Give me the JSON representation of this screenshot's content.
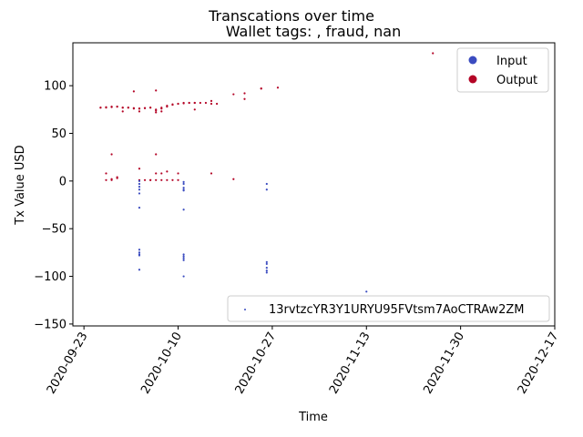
{
  "chart_data": {
    "type": "scatter",
    "title": "Transcations over time",
    "subtitle": "Wallet tags: , fraud, nan",
    "xlabel": "Time",
    "ylabel": "Tx Value USD",
    "xlim": [
      "2020-09-21",
      "2020-12-17"
    ],
    "ylim": [
      -152,
      145
    ],
    "x_ticks": [
      "2020-09-23",
      "2020-10-10",
      "2020-10-27",
      "2020-11-13",
      "2020-11-30",
      "2020-12-17"
    ],
    "y_ticks": [
      100,
      50,
      0,
      -50,
      -100,
      -150
    ],
    "grid": false,
    "legend_hue": {
      "placement": "top-right",
      "entries": [
        {
          "label": "Input",
          "color": "#3b4cc0"
        },
        {
          "label": "Output",
          "color": "#b40426"
        }
      ]
    },
    "legend_wallet": {
      "placement": "bottom-right",
      "label": "13rvtzcYR3Y1URYU95FVtsm7AoCTRAw2ZM",
      "color": "#3b4cc0"
    },
    "series": [
      {
        "name": "Output",
        "color": "#b40426",
        "points": [
          [
            "2020-09-26",
            77
          ],
          [
            "2020-09-26",
            77
          ],
          [
            "2020-09-27",
            77
          ],
          [
            "2020-09-27",
            77.5
          ],
          [
            "2020-09-28",
            77.5
          ],
          [
            "2020-09-28",
            78
          ],
          [
            "2020-09-29",
            78
          ],
          [
            "2020-09-29",
            78
          ],
          [
            "2020-09-30",
            77
          ],
          [
            "2020-09-30",
            77
          ],
          [
            "2020-10-01",
            77
          ],
          [
            "2020-10-01",
            77
          ],
          [
            "2020-10-02",
            76.5
          ],
          [
            "2020-10-02",
            76
          ],
          [
            "2020-10-03",
            76
          ],
          [
            "2020-10-03",
            76
          ],
          [
            "2020-10-04",
            76.5
          ],
          [
            "2020-10-04",
            76.5
          ],
          [
            "2020-10-05",
            77
          ],
          [
            "2020-10-05",
            77
          ],
          [
            "2020-10-06",
            75
          ],
          [
            "2020-10-06",
            74
          ],
          [
            "2020-10-07",
            76
          ],
          [
            "2020-10-07",
            77
          ],
          [
            "2020-10-08",
            78
          ],
          [
            "2020-10-08",
            79
          ],
          [
            "2020-10-09",
            80
          ],
          [
            "2020-10-09",
            80.5
          ],
          [
            "2020-10-10",
            81
          ],
          [
            "2020-10-10",
            81
          ],
          [
            "2020-10-11",
            81.5
          ],
          [
            "2020-10-11",
            82
          ],
          [
            "2020-10-12",
            82
          ],
          [
            "2020-10-12",
            82
          ],
          [
            "2020-10-13",
            82
          ],
          [
            "2020-10-13",
            82
          ],
          [
            "2020-10-14",
            82
          ],
          [
            "2020-10-15",
            82
          ],
          [
            "2020-10-16",
            81
          ],
          [
            "2020-10-17",
            81
          ],
          [
            "2020-09-30",
            73
          ],
          [
            "2020-10-02",
            94
          ],
          [
            "2020-10-03",
            73
          ],
          [
            "2020-10-06",
            95
          ],
          [
            "2020-10-06",
            72
          ],
          [
            "2020-10-07",
            73
          ],
          [
            "2020-10-13",
            75
          ],
          [
            "2020-10-16",
            84
          ],
          [
            "2020-10-20",
            91
          ],
          [
            "2020-10-22",
            92
          ],
          [
            "2020-10-22",
            86
          ],
          [
            "2020-10-25",
            97
          ],
          [
            "2020-10-25",
            97
          ],
          [
            "2020-10-28",
            98
          ],
          [
            "2020-11-25",
            134
          ],
          [
            "2020-09-27",
            8
          ],
          [
            "2020-09-27",
            1
          ],
          [
            "2020-09-28",
            1
          ],
          [
            "2020-09-28",
            2
          ],
          [
            "2020-09-29",
            3
          ],
          [
            "2020-09-29",
            4
          ],
          [
            "2020-09-28",
            28
          ],
          [
            "2020-10-03",
            13
          ],
          [
            "2020-10-03",
            1
          ],
          [
            "2020-10-04",
            1
          ],
          [
            "2020-10-05",
            1
          ],
          [
            "2020-10-05",
            1
          ],
          [
            "2020-10-06",
            8
          ],
          [
            "2020-10-06",
            28
          ],
          [
            "2020-10-06",
            1
          ],
          [
            "2020-10-07",
            1
          ],
          [
            "2020-10-07",
            8
          ],
          [
            "2020-10-08",
            10
          ],
          [
            "2020-10-08",
            1
          ],
          [
            "2020-10-09",
            1
          ],
          [
            "2020-10-10",
            8
          ],
          [
            "2020-10-10",
            1
          ],
          [
            "2020-10-16",
            8
          ],
          [
            "2020-10-20",
            2
          ]
        ]
      },
      {
        "name": "Input",
        "color": "#3b4cc0",
        "points": [
          [
            "2020-10-03",
            0
          ],
          [
            "2020-10-03",
            -3
          ],
          [
            "2020-10-03",
            -6
          ],
          [
            "2020-10-03",
            -9
          ],
          [
            "2020-10-03",
            -13
          ],
          [
            "2020-10-03",
            -28
          ],
          [
            "2020-10-03",
            -72
          ],
          [
            "2020-10-03",
            -75
          ],
          [
            "2020-10-03",
            -77
          ],
          [
            "2020-10-03",
            -78
          ],
          [
            "2020-10-03",
            -93
          ],
          [
            "2020-10-11",
            -1
          ],
          [
            "2020-10-11",
            -3
          ],
          [
            "2020-10-11",
            -7
          ],
          [
            "2020-10-11",
            -9
          ],
          [
            "2020-10-11",
            -10
          ],
          [
            "2020-10-11",
            -30
          ],
          [
            "2020-10-11",
            -77
          ],
          [
            "2020-10-11",
            -79
          ],
          [
            "2020-10-11",
            -81
          ],
          [
            "2020-10-11",
            -83
          ],
          [
            "2020-10-11",
            -100
          ],
          [
            "2020-10-26",
            -3
          ],
          [
            "2020-10-26",
            -9
          ],
          [
            "2020-10-26",
            -85
          ],
          [
            "2020-10-26",
            -87
          ],
          [
            "2020-10-26",
            -91
          ],
          [
            "2020-10-26",
            -94
          ],
          [
            "2020-10-26",
            -96
          ],
          [
            "2020-11-13",
            -116
          ]
        ]
      }
    ]
  }
}
